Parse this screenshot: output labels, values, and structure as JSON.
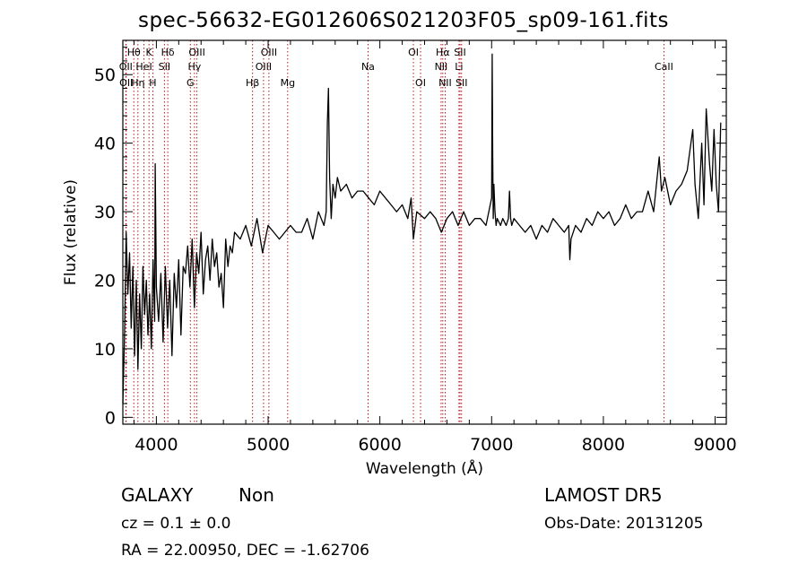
{
  "title": "spec-56632-EG012606S021203F05_sp09-161.fits",
  "info": {
    "object_class": "GALAXY",
    "subclass": "Non",
    "survey": "LAMOST DR5",
    "cz": "cz = 0.1 ± 0.0",
    "obs_date": "Obs-Date: 20131205",
    "radec": "RA =  22.00950, DEC =  -1.62706"
  },
  "colors": {
    "spectrum": "#000000",
    "line_marker": "#b00000"
  },
  "chart_data": {
    "type": "line",
    "xlabel": "Wavelength (Å)",
    "ylabel": "Flux (relative)",
    "xlim": [
      3700,
      9100
    ],
    "ylim": [
      -1,
      55
    ],
    "x_ticks": [
      4000,
      5000,
      6000,
      7000,
      8000,
      9000
    ],
    "y_ticks": [
      0,
      10,
      20,
      30,
      40,
      50
    ],
    "x_minor_step": 200,
    "y_minor_step": 2,
    "grid": false,
    "series": [
      {
        "x": [
          3700,
          3715,
          3730,
          3745,
          3760,
          3775,
          3790,
          3805,
          3820,
          3835,
          3850,
          3865,
          3880,
          3895,
          3910,
          3925,
          3940,
          3955,
          3970,
          3985,
          3990,
          4000,
          4020,
          4040,
          4060,
          4080,
          4100,
          4120,
          4140,
          4160,
          4180,
          4200,
          4220,
          4240,
          4260,
          4280,
          4300,
          4320,
          4340,
          4360,
          4380,
          4400,
          4420,
          4440,
          4460,
          4480,
          4500,
          4520,
          4540,
          4560,
          4580,
          4600,
          4620,
          4640,
          4660,
          4680,
          4700,
          4750,
          4800,
          4850,
          4900,
          4950,
          5000,
          5050,
          5100,
          5150,
          5200,
          5250,
          5300,
          5350,
          5400,
          5450,
          5500,
          5520,
          5530,
          5540,
          5550,
          5555,
          5565,
          5580,
          5600,
          5620,
          5650,
          5700,
          5750,
          5800,
          5850,
          5900,
          5950,
          6000,
          6050,
          6100,
          6150,
          6200,
          6250,
          6280,
          6300,
          6330,
          6400,
          6450,
          6500,
          6550,
          6600,
          6650,
          6700,
          6750,
          6800,
          6850,
          6900,
          6950,
          7000,
          7005,
          7010,
          7015,
          7020,
          7030,
          7040,
          7050,
          7080,
          7100,
          7130,
          7150,
          7160,
          7170,
          7180,
          7200,
          7250,
          7300,
          7350,
          7400,
          7450,
          7500,
          7550,
          7600,
          7650,
          7690,
          7700,
          7710,
          7750,
          7800,
          7850,
          7900,
          7950,
          8000,
          8050,
          8100,
          8150,
          8200,
          8250,
          8300,
          8350,
          8400,
          8450,
          8500,
          8520,
          8550,
          8600,
          8650,
          8700,
          8750,
          8800,
          8820,
          8850,
          8880,
          8900,
          8920,
          8950,
          8970,
          8990,
          9010,
          9030,
          9050
        ],
        "y": [
          2,
          12,
          27,
          18,
          24,
          13,
          22,
          9,
          20,
          7,
          18,
          10,
          22,
          15,
          20,
          12,
          18,
          10,
          23,
          14,
          37,
          19,
          14,
          21,
          11,
          22,
          13,
          20,
          9,
          21,
          16,
          23,
          12,
          22,
          21,
          25,
          19,
          26,
          16,
          24,
          21,
          27,
          18,
          23,
          25,
          20,
          26,
          22,
          24,
          19,
          21,
          16,
          26,
          22,
          25,
          24,
          27,
          26,
          28,
          25,
          29,
          24,
          28,
          27,
          26,
          27,
          28,
          27,
          27,
          29,
          26,
          30,
          28,
          30,
          43,
          48,
          35,
          33,
          29,
          34,
          32,
          35,
          33,
          34,
          32,
          33,
          33,
          32,
          31,
          33,
          32,
          31,
          30,
          31,
          29,
          32,
          26,
          30,
          29,
          30,
          29,
          27,
          29,
          30,
          28,
          30,
          28,
          29,
          29,
          28,
          32,
          53,
          38,
          29,
          34,
          30,
          28,
          29,
          28,
          29,
          28,
          29,
          33,
          29,
          28,
          29,
          28,
          27,
          28,
          26,
          28,
          27,
          29,
          28,
          27,
          28,
          23,
          26,
          28,
          27,
          29,
          28,
          30,
          29,
          30,
          28,
          29,
          31,
          29,
          30,
          30,
          33,
          30,
          38,
          33,
          35,
          31,
          33,
          34,
          36,
          42,
          34,
          29,
          40,
          31,
          45,
          37,
          33,
          42,
          34,
          30,
          43
        ]
      }
    ],
    "line_markers": [
      {
        "label": "OII",
        "wavelength": 3727,
        "row": 1
      },
      {
        "label": "OII",
        "wavelength": 3730,
        "row": 2
      },
      {
        "label": "Hθ",
        "wavelength": 3798,
        "row": 0
      },
      {
        "label": "Hη",
        "wavelength": 3835,
        "row": 2
      },
      {
        "label": "HeI",
        "wavelength": 3889,
        "row": 1
      },
      {
        "label": "K",
        "wavelength": 3934,
        "row": 0
      },
      {
        "label": "H",
        "wavelength": 3968,
        "row": 2
      },
      {
        "label": "Hδ",
        "wavelength": 4102,
        "row": 0
      },
      {
        "label": "SII",
        "wavelength": 4072,
        "row": 1
      },
      {
        "label": "OIII",
        "wavelength": 4363,
        "row": 0
      },
      {
        "label": "Hγ",
        "wavelength": 4341,
        "row": 1
      },
      {
        "label": "G",
        "wavelength": 4304,
        "row": 2
      },
      {
        "label": "Hβ",
        "wavelength": 4861,
        "row": 2
      },
      {
        "label": "OIII",
        "wavelength": 4959,
        "row": 1
      },
      {
        "label": "OIII",
        "wavelength": 5007,
        "row": 0
      },
      {
        "label": "Mg",
        "wavelength": 5175,
        "row": 2
      },
      {
        "label": "Na",
        "wavelength": 5894,
        "row": 1
      },
      {
        "label": "OI",
        "wavelength": 6300,
        "row": 0
      },
      {
        "label": "OI",
        "wavelength": 6364,
        "row": 2
      },
      {
        "label": "Hα",
        "wavelength": 6563,
        "row": 0
      },
      {
        "label": "NII",
        "wavelength": 6548,
        "row": 1
      },
      {
        "label": "NII",
        "wavelength": 6584,
        "row": 2
      },
      {
        "label": "SII",
        "wavelength": 6717,
        "row": 0
      },
      {
        "label": "Li",
        "wavelength": 6708,
        "row": 1
      },
      {
        "label": "SII",
        "wavelength": 6731,
        "row": 2
      },
      {
        "label": "CaII",
        "wavelength": 8542,
        "row": 1
      }
    ]
  }
}
